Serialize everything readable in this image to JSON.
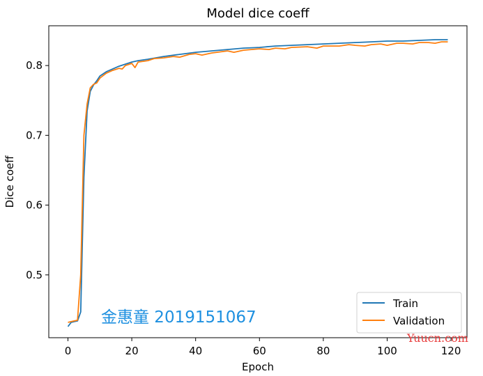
{
  "chart_data": {
    "type": "line",
    "title": "Model dice coeff",
    "xlabel": "Epoch",
    "ylabel": "Dice coeff",
    "xlim": [
      -6,
      125
    ],
    "ylim": [
      0.41,
      0.857
    ],
    "xticks": [
      0,
      20,
      40,
      60,
      80,
      100,
      120
    ],
    "yticks": [
      0.5,
      0.6,
      0.7,
      0.8
    ],
    "xtick_labels": [
      "0",
      "20",
      "40",
      "60",
      "80",
      "100",
      "120"
    ],
    "ytick_labels": [
      "0.5",
      "0.6",
      "0.7",
      "0.8"
    ],
    "grid": false,
    "legend_position": "lower-right",
    "series": [
      {
        "name": "Train",
        "color": "#1f77b4",
        "points": [
          [
            0,
            0.426
          ],
          [
            1,
            0.432
          ],
          [
            2,
            0.433
          ],
          [
            3,
            0.434
          ],
          [
            4,
            0.447
          ],
          [
            5,
            0.64
          ],
          [
            6,
            0.735
          ],
          [
            7,
            0.763
          ],
          [
            8,
            0.772
          ],
          [
            9,
            0.778
          ],
          [
            10,
            0.785
          ],
          [
            12,
            0.791
          ],
          [
            14,
            0.795
          ],
          [
            16,
            0.799
          ],
          [
            18,
            0.802
          ],
          [
            20,
            0.805
          ],
          [
            22,
            0.807
          ],
          [
            25,
            0.809
          ],
          [
            30,
            0.813
          ],
          [
            35,
            0.816
          ],
          [
            40,
            0.819
          ],
          [
            45,
            0.821
          ],
          [
            50,
            0.823
          ],
          [
            55,
            0.825
          ],
          [
            60,
            0.826
          ],
          [
            65,
            0.828
          ],
          [
            70,
            0.829
          ],
          [
            75,
            0.83
          ],
          [
            80,
            0.831
          ],
          [
            85,
            0.832
          ],
          [
            90,
            0.833
          ],
          [
            95,
            0.834
          ],
          [
            100,
            0.835
          ],
          [
            105,
            0.835
          ],
          [
            110,
            0.836
          ],
          [
            115,
            0.837
          ],
          [
            119,
            0.837
          ]
        ]
      },
      {
        "name": "Validation",
        "color": "#ff7f0e",
        "points": [
          [
            0,
            0.432
          ],
          [
            1,
            0.433
          ],
          [
            2,
            0.434
          ],
          [
            3,
            0.435
          ],
          [
            4,
            0.5
          ],
          [
            5,
            0.7
          ],
          [
            6,
            0.745
          ],
          [
            7,
            0.768
          ],
          [
            8,
            0.773
          ],
          [
            9,
            0.775
          ],
          [
            10,
            0.782
          ],
          [
            12,
            0.789
          ],
          [
            14,
            0.793
          ],
          [
            16,
            0.796
          ],
          [
            17,
            0.795
          ],
          [
            18,
            0.8
          ],
          [
            20,
            0.803
          ],
          [
            21,
            0.797
          ],
          [
            22,
            0.805
          ],
          [
            25,
            0.807
          ],
          [
            27,
            0.81
          ],
          [
            30,
            0.811
          ],
          [
            33,
            0.813
          ],
          [
            35,
            0.812
          ],
          [
            38,
            0.816
          ],
          [
            40,
            0.817
          ],
          [
            42,
            0.815
          ],
          [
            45,
            0.818
          ],
          [
            50,
            0.821
          ],
          [
            52,
            0.819
          ],
          [
            55,
            0.822
          ],
          [
            60,
            0.824
          ],
          [
            63,
            0.823
          ],
          [
            65,
            0.825
          ],
          [
            68,
            0.824
          ],
          [
            70,
            0.826
          ],
          [
            75,
            0.827
          ],
          [
            78,
            0.825
          ],
          [
            80,
            0.828
          ],
          [
            85,
            0.828
          ],
          [
            88,
            0.83
          ],
          [
            90,
            0.829
          ],
          [
            93,
            0.828
          ],
          [
            95,
            0.83
          ],
          [
            98,
            0.831
          ],
          [
            100,
            0.829
          ],
          [
            103,
            0.832
          ],
          [
            105,
            0.832
          ],
          [
            108,
            0.831
          ],
          [
            110,
            0.833
          ],
          [
            113,
            0.833
          ],
          [
            115,
            0.832
          ],
          [
            117,
            0.834
          ],
          [
            119,
            0.834
          ]
        ]
      }
    ],
    "annotation": {
      "text": "金惠童 2019151067",
      "color": "#1e90e0",
      "x": 5,
      "y": 0.436
    },
    "watermark": {
      "text": "Yuucn.com",
      "color": "#e83a3a"
    }
  }
}
